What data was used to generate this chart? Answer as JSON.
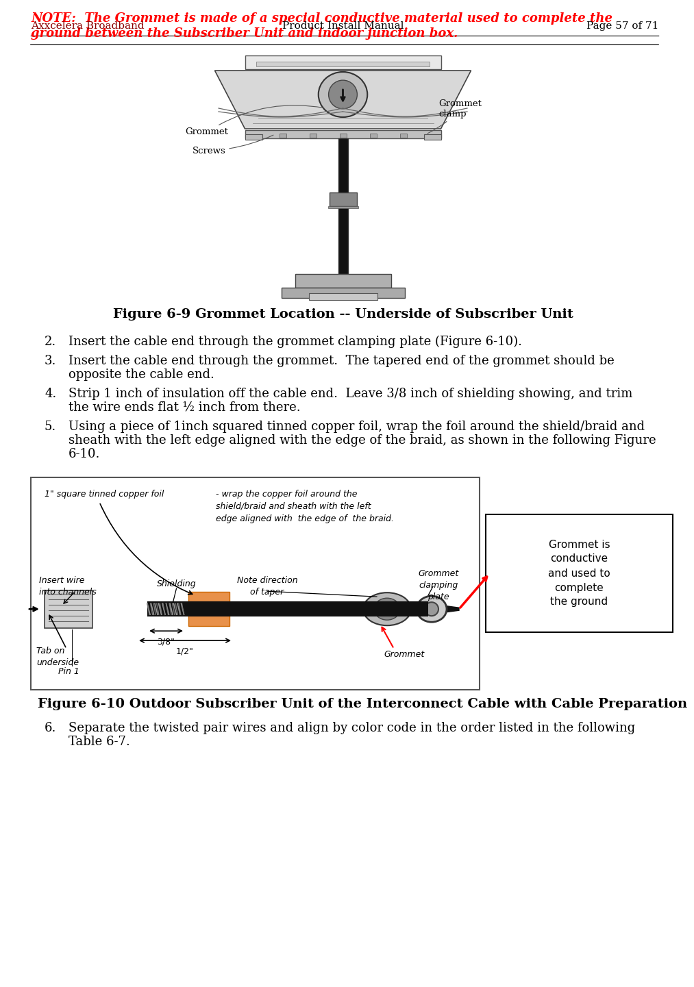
{
  "note_line1": "NOTE:  The Grommet is made of a special conductive material used to complete the",
  "note_line2": "ground between the Subscriber Unit and indoor junction box.",
  "note_color": "#FF0000",
  "fig_caption1": "Figure 6-9 Grommet Location -- Underside of Subscriber Unit",
  "fig_caption2": "Figure 6-10 Outdoor Subscriber Unit of the Interconnect Cable with Cable Preparation",
  "footer_left": "Axxcelera Broadband",
  "footer_center": "Product Install Manual",
  "footer_right": "Page 57 of 71",
  "footer_color": "#8B0000",
  "bg_color": "#FFFFFF",
  "text_color": "#000000",
  "body_fontsize": 13,
  "caption_fontsize": 13
}
